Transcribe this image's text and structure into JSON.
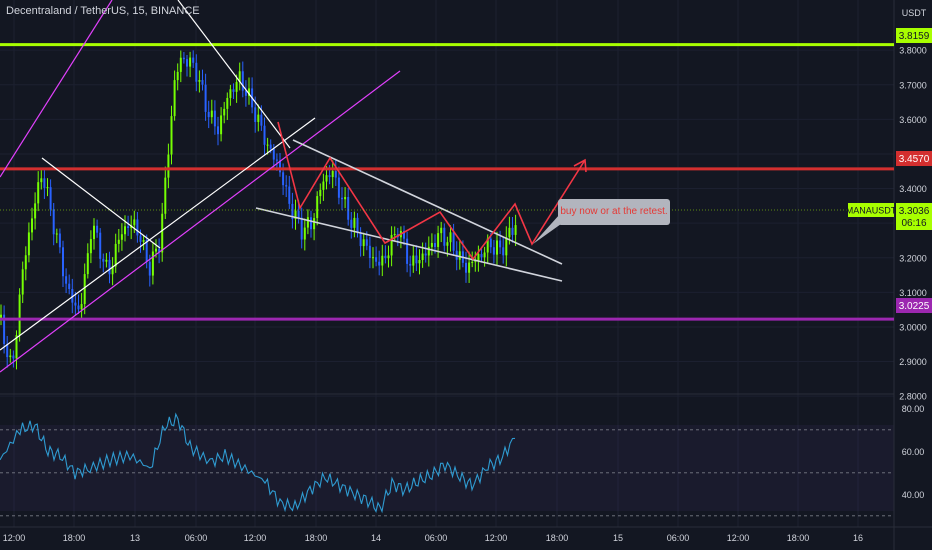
{
  "header": {
    "title": "Decentraland / TetherUS, 15, BINANCE"
  },
  "axis": {
    "currency": "USDT",
    "price_ticks": [
      "3.8000",
      "3.7000",
      "3.6000",
      "3.5000",
      "3.4000",
      "3.3000",
      "3.2000",
      "3.1000",
      "3.0000",
      "2.9000",
      "2.8000"
    ],
    "rsi_ticks": [
      "80.00",
      "60.00",
      "40.00"
    ],
    "time_ticks": [
      "12:00",
      "18:00",
      "13",
      "06:00",
      "12:00",
      "18:00",
      "14",
      "06:00",
      "12:00",
      "18:00",
      "15",
      "06:00",
      "12:00",
      "18:00",
      "16"
    ]
  },
  "levels": [
    {
      "label": "3.8159",
      "color": "#a8ff00"
    },
    {
      "label": "3.4570",
      "color": "#d32f2f"
    },
    {
      "label": "3.0225",
      "color": "#9c27b0"
    }
  ],
  "price_badge": {
    "symbol": "MANAUSDT",
    "price": "3.3036",
    "countdown": "06:16",
    "color": "#a8ff00"
  },
  "annotation": {
    "text": "buy now or at the retest."
  },
  "chart_data": {
    "type": "candlestick",
    "symbol": "MANAUSDT",
    "exchange": "BINANCE",
    "interval": "15",
    "ylim": [
      2.76,
      3.88
    ],
    "current_price": 3.3036,
    "horizontal_levels": [
      3.8159,
      3.457,
      3.0225
    ],
    "close_path": [
      [
        0,
        3.02
      ],
      [
        12,
        2.87
      ],
      [
        22,
        3.15
      ],
      [
        32,
        3.32
      ],
      [
        42,
        3.45
      ],
      [
        55,
        3.28
      ],
      [
        68,
        3.1
      ],
      [
        80,
        3.04
      ],
      [
        92,
        3.3
      ],
      [
        108,
        3.15
      ],
      [
        122,
        3.28
      ],
      [
        135,
        3.3
      ],
      [
        150,
        3.17
      ],
      [
        160,
        3.25
      ],
      [
        168,
        3.5
      ],
      [
        175,
        3.72
      ],
      [
        182,
        3.78
      ],
      [
        195,
        3.75
      ],
      [
        208,
        3.62
      ],
      [
        218,
        3.57
      ],
      [
        228,
        3.67
      ],
      [
        240,
        3.72
      ],
      [
        255,
        3.62
      ],
      [
        268,
        3.52
      ],
      [
        278,
        3.47
      ],
      [
        290,
        3.35
      ],
      [
        302,
        3.28
      ],
      [
        312,
        3.3
      ],
      [
        322,
        3.42
      ],
      [
        332,
        3.45
      ],
      [
        342,
        3.37
      ],
      [
        352,
        3.3
      ],
      [
        362,
        3.25
      ],
      [
        372,
        3.2
      ],
      [
        380,
        3.18
      ],
      [
        390,
        3.23
      ],
      [
        398,
        3.29
      ],
      [
        410,
        3.18
      ],
      [
        425,
        3.21
      ],
      [
        440,
        3.27
      ],
      [
        452,
        3.24
      ],
      [
        465,
        3.17
      ],
      [
        478,
        3.2
      ],
      [
        490,
        3.24
      ],
      [
        500,
        3.22
      ],
      [
        510,
        3.27
      ],
      [
        516,
        3.3
      ]
    ],
    "rsi_path": [
      [
        0,
        56
      ],
      [
        20,
        70
      ],
      [
        35,
        72
      ],
      [
        48,
        60
      ],
      [
        60,
        58
      ],
      [
        75,
        50
      ],
      [
        90,
        52
      ],
      [
        110,
        56
      ],
      [
        130,
        58
      ],
      [
        150,
        52
      ],
      [
        165,
        72
      ],
      [
        178,
        75
      ],
      [
        190,
        62
      ],
      [
        210,
        55
      ],
      [
        225,
        58
      ],
      [
        245,
        52
      ],
      [
        265,
        46
      ],
      [
        280,
        36
      ],
      [
        295,
        34
      ],
      [
        310,
        42
      ],
      [
        325,
        48
      ],
      [
        340,
        44
      ],
      [
        355,
        40
      ],
      [
        368,
        37
      ],
      [
        380,
        33
      ],
      [
        392,
        45
      ],
      [
        405,
        42
      ],
      [
        418,
        46
      ],
      [
        432,
        49
      ],
      [
        445,
        54
      ],
      [
        460,
        48
      ],
      [
        472,
        44
      ],
      [
        488,
        53
      ],
      [
        500,
        56
      ],
      [
        515,
        66
      ]
    ]
  }
}
